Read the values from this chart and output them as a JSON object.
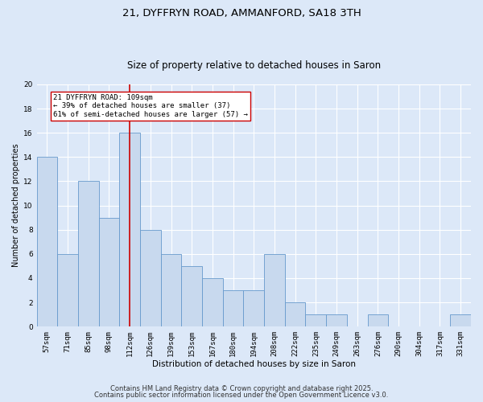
{
  "title": "21, DYFFRYN ROAD, AMMANFORD, SA18 3TH",
  "subtitle": "Size of property relative to detached houses in Saron",
  "xlabel": "Distribution of detached houses by size in Saron",
  "ylabel": "Number of detached properties",
  "categories": [
    "57sqm",
    "71sqm",
    "85sqm",
    "98sqm",
    "112sqm",
    "126sqm",
    "139sqm",
    "153sqm",
    "167sqm",
    "180sqm",
    "194sqm",
    "208sqm",
    "222sqm",
    "235sqm",
    "249sqm",
    "263sqm",
    "276sqm",
    "290sqm",
    "304sqm",
    "317sqm",
    "331sqm"
  ],
  "values": [
    14,
    6,
    12,
    9,
    16,
    8,
    6,
    5,
    4,
    3,
    3,
    6,
    2,
    1,
    1,
    0,
    1,
    0,
    0,
    0,
    1
  ],
  "bar_color": "#c8d9ee",
  "bar_edge_color": "#6699cc",
  "vline_x_index": 4,
  "vline_color": "#cc0000",
  "annotation_text": "21 DYFFRYN ROAD: 109sqm\n← 39% of detached houses are smaller (37)\n61% of semi-detached houses are larger (57) →",
  "annotation_box_color": "#ffffff",
  "annotation_box_edge_color": "#cc0000",
  "ylim": [
    0,
    20
  ],
  "yticks": [
    0,
    2,
    4,
    6,
    8,
    10,
    12,
    14,
    16,
    18,
    20
  ],
  "bg_color": "#dce8f8",
  "plot_bg_color": "#dce8f8",
  "footer_line1": "Contains HM Land Registry data © Crown copyright and database right 2025.",
  "footer_line2": "Contains public sector information licensed under the Open Government Licence v3.0.",
  "title_fontsize": 9.5,
  "subtitle_fontsize": 8.5,
  "annotation_fontsize": 6.5,
  "footer_fontsize": 6,
  "ylabel_fontsize": 7,
  "xlabel_fontsize": 7.5,
  "tick_fontsize": 6.5
}
